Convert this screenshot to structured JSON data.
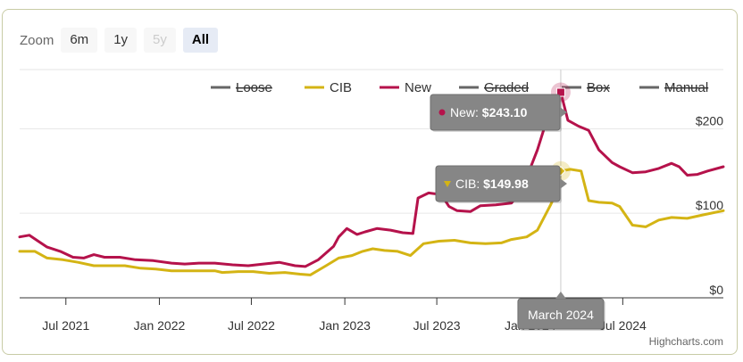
{
  "zoom": {
    "label": "Zoom",
    "buttons": [
      {
        "label": "6m",
        "state": "normal"
      },
      {
        "label": "1y",
        "state": "normal"
      },
      {
        "label": "5y",
        "state": "disabled"
      },
      {
        "label": "All",
        "state": "active"
      }
    ]
  },
  "credits": "Highcharts.com",
  "chart_data": {
    "type": "line",
    "title": "",
    "xlabel": "",
    "ylabel": "",
    "x_range": [
      "2021-04-01",
      "2025-01-15"
    ],
    "ylim": [
      0,
      270
    ],
    "yticks": [
      0,
      100,
      200
    ],
    "ytick_labels": [
      "$0",
      "$100",
      "$200"
    ],
    "xticks": [
      {
        "date": "2021-07-01",
        "label": "Jul 2021"
      },
      {
        "date": "2022-01-01",
        "label": "Jan 2022"
      },
      {
        "date": "2022-07-01",
        "label": "Jul 2022"
      },
      {
        "date": "2023-01-01",
        "label": "Jan 2023"
      },
      {
        "date": "2023-07-01",
        "label": "Jul 2023"
      },
      {
        "date": "2024-01-01",
        "label": "Jan 2024"
      },
      {
        "date": "2024-07-01",
        "label": "Jul 2024"
      }
    ],
    "legend": [
      {
        "name": "Loose",
        "color": "#666666",
        "visible": false
      },
      {
        "name": "CIB",
        "color": "#d4b414",
        "visible": true
      },
      {
        "name": "New",
        "color": "#b5124b",
        "visible": true
      },
      {
        "name": "Graded",
        "color": "#666666",
        "visible": false
      },
      {
        "name": "Box",
        "color": "#666666",
        "visible": false
      },
      {
        "name": "Manual",
        "color": "#666666",
        "visible": false
      }
    ],
    "series": [
      {
        "name": "New",
        "color": "#b5124b",
        "points": [
          [
            "2021-04-01",
            72
          ],
          [
            "2021-04-20",
            74
          ],
          [
            "2021-05-05",
            68
          ],
          [
            "2021-05-25",
            60
          ],
          [
            "2021-06-20",
            55
          ],
          [
            "2021-07-15",
            48
          ],
          [
            "2021-08-05",
            47
          ],
          [
            "2021-08-25",
            51
          ],
          [
            "2021-09-15",
            48
          ],
          [
            "2021-10-15",
            48
          ],
          [
            "2021-11-15",
            45
          ],
          [
            "2021-12-20",
            44
          ],
          [
            "2022-01-25",
            41
          ],
          [
            "2022-02-20",
            40
          ],
          [
            "2022-03-20",
            41
          ],
          [
            "2022-04-20",
            41
          ],
          [
            "2022-05-25",
            39
          ],
          [
            "2022-06-25",
            38
          ],
          [
            "2022-07-25",
            40
          ],
          [
            "2022-08-25",
            42
          ],
          [
            "2022-09-25",
            38
          ],
          [
            "2022-10-15",
            37
          ],
          [
            "2022-11-10",
            45
          ],
          [
            "2022-12-10",
            61
          ],
          [
            "2022-12-20",
            72
          ],
          [
            "2023-01-05",
            82
          ],
          [
            "2023-01-25",
            75
          ],
          [
            "2023-02-10",
            78
          ],
          [
            "2023-03-05",
            82
          ],
          [
            "2023-04-01",
            80
          ],
          [
            "2023-04-25",
            77
          ],
          [
            "2023-05-15",
            76
          ],
          [
            "2023-05-25",
            118
          ],
          [
            "2023-06-15",
            124
          ],
          [
            "2023-07-10",
            122
          ],
          [
            "2023-07-25",
            108
          ],
          [
            "2023-08-10",
            103
          ],
          [
            "2023-09-05",
            102
          ],
          [
            "2023-09-25",
            109
          ],
          [
            "2023-10-25",
            110
          ],
          [
            "2023-11-25",
            112
          ],
          [
            "2023-12-15",
            127
          ],
          [
            "2024-01-15",
            175
          ],
          [
            "2024-02-10",
            225
          ],
          [
            "2024-03-01",
            243.1
          ],
          [
            "2024-03-15",
            210
          ],
          [
            "2024-04-05",
            203
          ],
          [
            "2024-04-25",
            198
          ],
          [
            "2024-05-15",
            175
          ],
          [
            "2024-06-10",
            160
          ],
          [
            "2024-06-25",
            155
          ],
          [
            "2024-07-20",
            148
          ],
          [
            "2024-08-15",
            149
          ],
          [
            "2024-09-10",
            153
          ],
          [
            "2024-10-05",
            159
          ],
          [
            "2024-10-20",
            155
          ],
          [
            "2024-11-05",
            145
          ],
          [
            "2024-11-25",
            146
          ],
          [
            "2024-12-15",
            150
          ],
          [
            "2025-01-15",
            155
          ]
        ]
      },
      {
        "name": "CIB",
        "color": "#d4b414",
        "points": [
          [
            "2021-04-01",
            55
          ],
          [
            "2021-05-01",
            55
          ],
          [
            "2021-05-25",
            47
          ],
          [
            "2021-06-25",
            45
          ],
          [
            "2021-07-25",
            42
          ],
          [
            "2021-08-25",
            38
          ],
          [
            "2021-09-25",
            38
          ],
          [
            "2021-10-25",
            38
          ],
          [
            "2021-11-25",
            35
          ],
          [
            "2021-12-25",
            34
          ],
          [
            "2022-01-25",
            32
          ],
          [
            "2022-02-25",
            32
          ],
          [
            "2022-03-25",
            32
          ],
          [
            "2022-04-20",
            32
          ],
          [
            "2022-05-05",
            30
          ],
          [
            "2022-06-05",
            31
          ],
          [
            "2022-07-05",
            31
          ],
          [
            "2022-08-05",
            29
          ],
          [
            "2022-09-05",
            30
          ],
          [
            "2022-10-05",
            28
          ],
          [
            "2022-10-25",
            27
          ],
          [
            "2022-11-25",
            38
          ],
          [
            "2022-12-20",
            47
          ],
          [
            "2023-01-15",
            50
          ],
          [
            "2023-02-05",
            55
          ],
          [
            "2023-02-25",
            58
          ],
          [
            "2023-03-20",
            56
          ],
          [
            "2023-04-15",
            55
          ],
          [
            "2023-05-10",
            50
          ],
          [
            "2023-06-05",
            64
          ],
          [
            "2023-07-05",
            67
          ],
          [
            "2023-08-05",
            68
          ],
          [
            "2023-09-05",
            65
          ],
          [
            "2023-10-05",
            64
          ],
          [
            "2023-11-05",
            65
          ],
          [
            "2023-11-25",
            69
          ],
          [
            "2023-12-25",
            72
          ],
          [
            "2024-01-15",
            80
          ],
          [
            "2024-02-10",
            110
          ],
          [
            "2024-02-25",
            130
          ],
          [
            "2024-03-01",
            149.98
          ],
          [
            "2024-03-20",
            152
          ],
          [
            "2024-04-10",
            150
          ],
          [
            "2024-04-25",
            115
          ],
          [
            "2024-05-15",
            113
          ],
          [
            "2024-06-10",
            112
          ],
          [
            "2024-06-25",
            108
          ],
          [
            "2024-07-20",
            86
          ],
          [
            "2024-08-15",
            84
          ],
          [
            "2024-09-10",
            92
          ],
          [
            "2024-10-05",
            95
          ],
          [
            "2024-11-05",
            94
          ],
          [
            "2024-12-05",
            98
          ],
          [
            "2025-01-15",
            103
          ]
        ]
      }
    ],
    "tooltip": {
      "date_label": "March 2024",
      "items": [
        {
          "series": "New",
          "label": "New",
          "value": "$243.10"
        },
        {
          "series": "CIB",
          "label": "CIB",
          "value": "$149.98"
        }
      ]
    }
  }
}
